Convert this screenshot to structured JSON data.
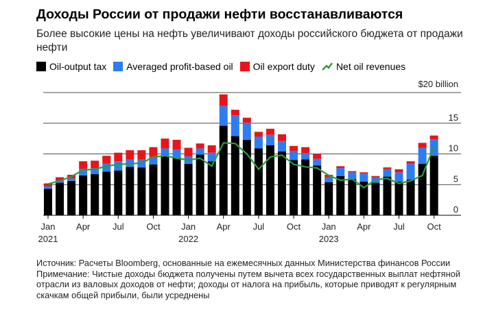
{
  "title": "Доходы России от продажи нефти восстанавливаются",
  "subtitle": "Более высокие цены на нефть увеличивают доходы российского бюджета от продажи нефти",
  "legend": [
    {
      "label": "Oil-output tax",
      "color": "#000000",
      "kind": "box"
    },
    {
      "label": "Averaged profit-based oil",
      "color": "#2e7df0",
      "kind": "box"
    },
    {
      "label": "Oil export duty",
      "color": "#e8141b",
      "kind": "box"
    },
    {
      "label": "Net oil revenues",
      "color": "#2a9d3a",
      "kind": "line"
    }
  ],
  "footer": {
    "source": "Источник: Расчеты Bloomberg, основанные на ежемесячных данных Министерства финансов России",
    "note": "Примечание: Чистые доходы бюджета получены путем вычета всех государственных выплат нефтяной отрасли из валовых доходов от нефти; доходы от налога на прибыль, которые приводят к регулярным скачкам общей прибыли, были усреднены"
  },
  "chart_data": {
    "type": "bar",
    "stacked": true,
    "ylim": [
      0,
      20
    ],
    "yticks": [
      0,
      5,
      10,
      15
    ],
    "ytick_labels": [
      "0",
      "5",
      "10",
      "15",
      "$20 billion"
    ],
    "grid": true,
    "x_tick_labels": [
      {
        "label": "Jan",
        "index": 0,
        "year": "2021"
      },
      {
        "label": "Apr",
        "index": 3
      },
      {
        "label": "Jul",
        "index": 6
      },
      {
        "label": "Oct",
        "index": 9
      },
      {
        "label": "Jan",
        "index": 12,
        "year": "2022"
      },
      {
        "label": "Apr",
        "index": 15
      },
      {
        "label": "Jul",
        "index": 18
      },
      {
        "label": "Oct",
        "index": 21
      },
      {
        "label": "Jan",
        "index": 24,
        "year": "2023"
      },
      {
        "label": "Apr",
        "index": 27
      },
      {
        "label": "Jul",
        "index": 30
      },
      {
        "label": "Oct",
        "index": 33
      }
    ],
    "categories": [
      "Jan 2021",
      "Feb 2021",
      "Mar 2021",
      "Apr 2021",
      "May 2021",
      "Jun 2021",
      "Jul 2021",
      "Aug 2021",
      "Sep 2021",
      "Oct 2021",
      "Nov 2021",
      "Dec 2021",
      "Jan 2022",
      "Feb 2022",
      "Mar 2022",
      "Apr 2022",
      "May 2022",
      "Jun 2022",
      "Jul 2022",
      "Aug 2022",
      "Sep 2022",
      "Oct 2022",
      "Nov 2022",
      "Dec 2022",
      "Jan 2023",
      "Feb 2023",
      "Mar 2023",
      "Apr 2023",
      "May 2023",
      "Jun 2023",
      "Jul 2023",
      "Aug 2023",
      "Sep 2023",
      "Oct 2023"
    ],
    "series": [
      {
        "name": "Oil-output tax",
        "color": "#000000",
        "values": [
          4.3,
          5.3,
          5.6,
          6.5,
          6.7,
          7.1,
          7.3,
          7.9,
          7.8,
          8.3,
          9.6,
          9.4,
          8.4,
          9.9,
          8.8,
          14.6,
          12.9,
          12.3,
          10.9,
          11.4,
          10.4,
          9.0,
          9.1,
          8.1,
          5.4,
          6.4,
          5.9,
          5.5,
          5.3,
          6.3,
          5.5,
          5.8,
          8.4,
          9.7
        ]
      },
      {
        "name": "Averaged profit-based oil",
        "color": "#2e7df0",
        "values": [
          0.4,
          0.4,
          0.4,
          1.1,
          1.0,
          1.3,
          1.5,
          1.2,
          1.3,
          1.2,
          1.3,
          1.3,
          1.2,
          1.0,
          1.4,
          3.2,
          3.4,
          2.8,
          1.9,
          1.7,
          1.7,
          1.5,
          1.0,
          1.1,
          0.8,
          1.3,
          1.1,
          1.3,
          0.9,
          1.2,
          1.5,
          2.6,
          2.6,
          2.7
        ]
      },
      {
        "name": "Oil export duty",
        "color": "#e8141b",
        "values": [
          0.5,
          0.5,
          0.6,
          1.2,
          1.2,
          1.3,
          1.4,
          1.5,
          1.5,
          1.6,
          1.6,
          1.6,
          1.4,
          0.8,
          1.2,
          1.9,
          0.9,
          0.8,
          0.8,
          1.0,
          1.1,
          0.8,
          1.0,
          0.8,
          0.4,
          0.3,
          0.2,
          0.2,
          0.2,
          0.3,
          0.5,
          0.4,
          0.8,
          0.6
        ]
      },
      {
        "name": "Net oil revenues",
        "color": "#2a9d3a",
        "type": "line",
        "values": [
          5.1,
          5.6,
          6.3,
          7.4,
          7.5,
          8.0,
          8.3,
          8.4,
          8.5,
          9.5,
          9.7,
          9.3,
          9.0,
          9.3,
          8.0,
          11.8,
          11.7,
          10.0,
          7.5,
          9.5,
          9.8,
          8.3,
          7.9,
          7.7,
          6.5,
          5.7,
          5.9,
          4.5,
          5.8,
          6.0,
          5.2,
          5.6,
          6.5,
          11.2
        ]
      }
    ]
  }
}
